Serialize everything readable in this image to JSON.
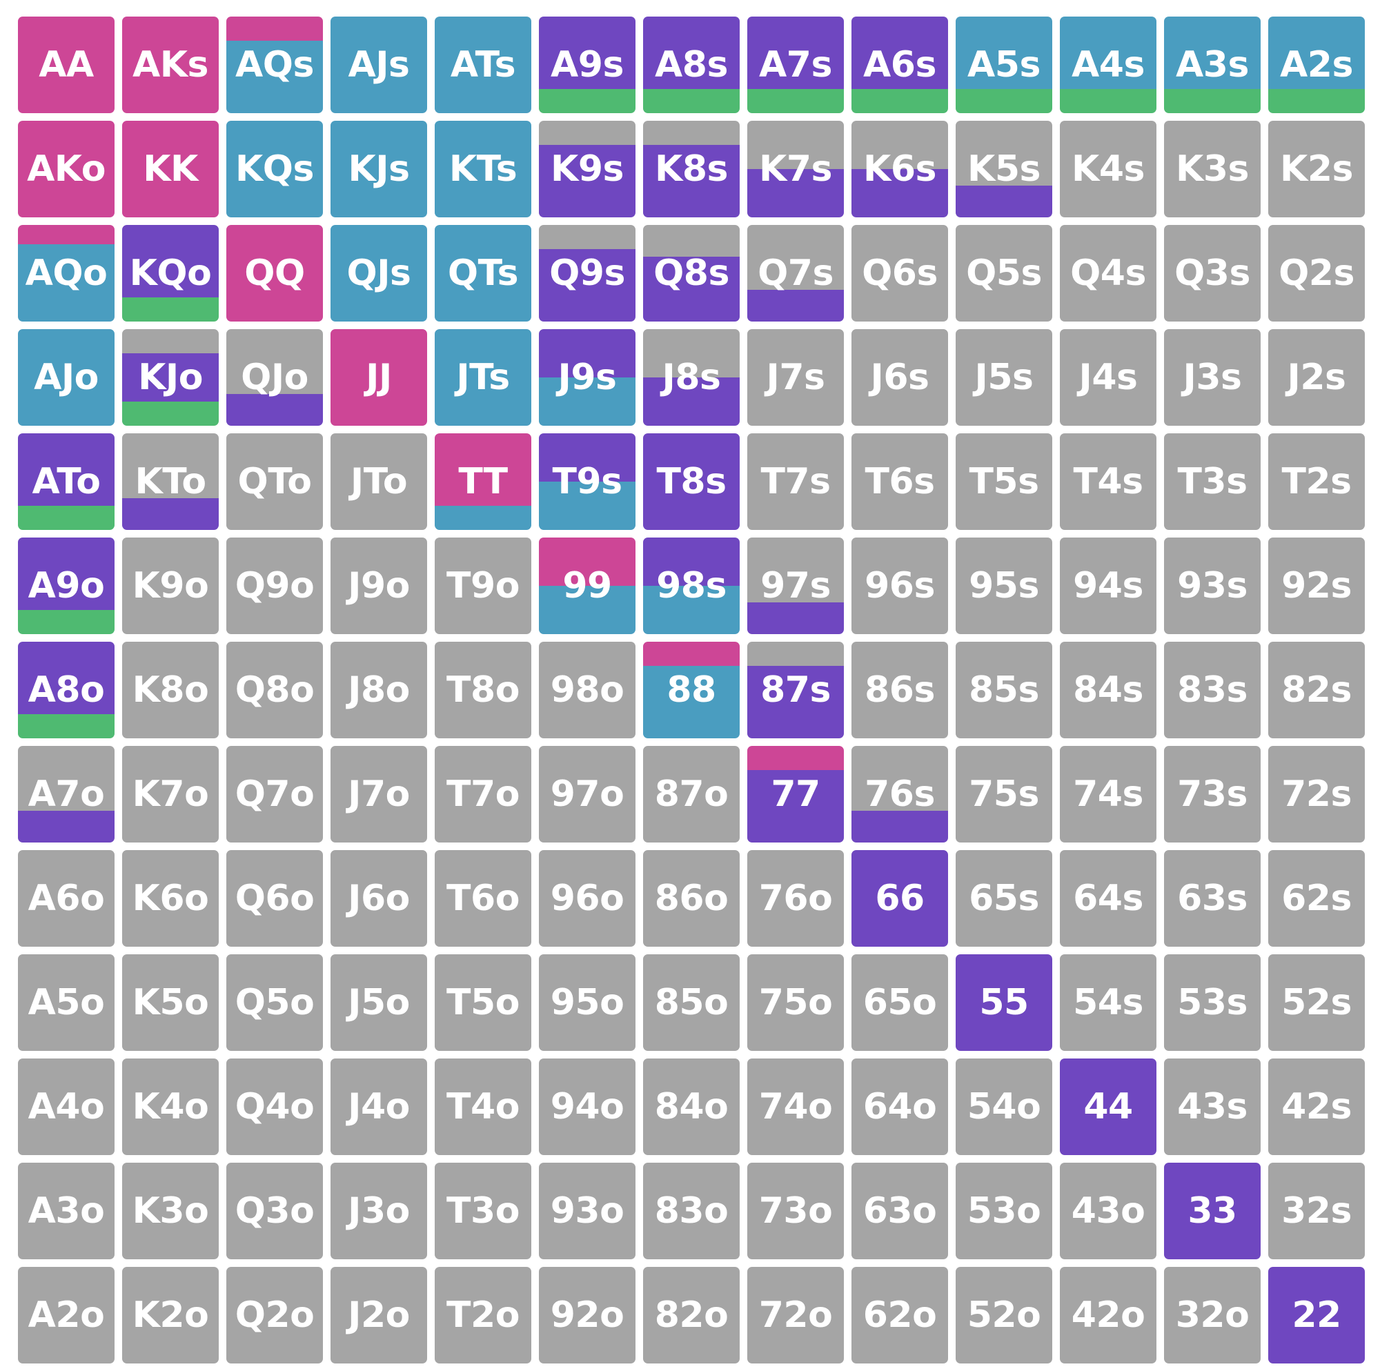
{
  "colors": {
    "raise": "#cd4696",
    "call": "#4a9dc0",
    "threebet": "#6f47c0",
    "allin": "#4fba71",
    "fold": "#a5a5a5"
  },
  "hands": [
    [
      "AA",
      "AKs",
      "AQs",
      "AJs",
      "ATs",
      "A9s",
      "A8s",
      "A7s",
      "A6s",
      "A5s",
      "A4s",
      "A3s",
      "A2s"
    ],
    [
      "AKo",
      "KK",
      "KQs",
      "KJs",
      "KTs",
      "K9s",
      "K8s",
      "K7s",
      "K6s",
      "K5s",
      "K4s",
      "K3s",
      "K2s"
    ],
    [
      "AQo",
      "KQo",
      "QQ",
      "QJs",
      "QTs",
      "Q9s",
      "Q8s",
      "Q7s",
      "Q6s",
      "Q5s",
      "Q4s",
      "Q3s",
      "Q2s"
    ],
    [
      "AJo",
      "KJo",
      "QJo",
      "JJ",
      "JTs",
      "J9s",
      "J8s",
      "J7s",
      "J6s",
      "J5s",
      "J4s",
      "J3s",
      "J2s"
    ],
    [
      "ATo",
      "KTo",
      "QTo",
      "JTo",
      "TT",
      "T9s",
      "T8s",
      "T7s",
      "T6s",
      "T5s",
      "T4s",
      "T3s",
      "T2s"
    ],
    [
      "A9o",
      "K9o",
      "Q9o",
      "J9o",
      "T9o",
      "99",
      "98s",
      "97s",
      "96s",
      "95s",
      "94s",
      "93s",
      "92s"
    ],
    [
      "A8o",
      "K8o",
      "Q8o",
      "J8o",
      "T8o",
      "98o",
      "88",
      "87s",
      "86s",
      "85s",
      "84s",
      "83s",
      "82s"
    ],
    [
      "A7o",
      "K7o",
      "Q7o",
      "J7o",
      "T7o",
      "97o",
      "87o",
      "77",
      "76s",
      "75s",
      "74s",
      "73s",
      "72s"
    ],
    [
      "A6o",
      "K6o",
      "Q6o",
      "J6o",
      "T6o",
      "96o",
      "86o",
      "76o",
      "66",
      "65s",
      "64s",
      "63s",
      "62s"
    ],
    [
      "A5o",
      "K5o",
      "Q5o",
      "J5o",
      "T5o",
      "95o",
      "85o",
      "75o",
      "65o",
      "55",
      "54s",
      "53s",
      "52s"
    ],
    [
      "A4o",
      "K4o",
      "Q4o",
      "J4o",
      "T4o",
      "94o",
      "84o",
      "74o",
      "64o",
      "54o",
      "44",
      "43s",
      "42s"
    ],
    [
      "A3o",
      "K3o",
      "Q3o",
      "J3o",
      "T3o",
      "93o",
      "83o",
      "73o",
      "63o",
      "53o",
      "43o",
      "33",
      "32s"
    ],
    [
      "A2o",
      "K2o",
      "Q2o",
      "J2o",
      "T2o",
      "92o",
      "82o",
      "72o",
      "62o",
      "52o",
      "42o",
      "32o",
      "22"
    ]
  ],
  "mix": {
    "AA": [
      [
        "raise",
        1
      ]
    ],
    "AKs": [
      [
        "raise",
        1
      ]
    ],
    "AQs": [
      [
        "raise",
        0.25
      ],
      [
        "call",
        0.75
      ]
    ],
    "AJs": [
      [
        "call",
        1
      ]
    ],
    "ATs": [
      [
        "call",
        1
      ]
    ],
    "A9s": [
      [
        "threebet",
        0.75
      ],
      [
        "allin",
        0.25
      ]
    ],
    "A8s": [
      [
        "threebet",
        0.75
      ],
      [
        "allin",
        0.25
      ]
    ],
    "A7s": [
      [
        "threebet",
        0.75
      ],
      [
        "allin",
        0.25
      ]
    ],
    "A6s": [
      [
        "threebet",
        0.75
      ],
      [
        "allin",
        0.25
      ]
    ],
    "A5s": [
      [
        "call",
        0.75
      ],
      [
        "allin",
        0.25
      ]
    ],
    "A4s": [
      [
        "call",
        0.75
      ],
      [
        "allin",
        0.25
      ]
    ],
    "A3s": [
      [
        "call",
        0.75
      ],
      [
        "allin",
        0.25
      ]
    ],
    "A2s": [
      [
        "call",
        0.75
      ],
      [
        "allin",
        0.25
      ]
    ],
    "AKo": [
      [
        "raise",
        1
      ]
    ],
    "KK": [
      [
        "raise",
        1
      ]
    ],
    "KQs": [
      [
        "call",
        1
      ]
    ],
    "KJs": [
      [
        "call",
        1
      ]
    ],
    "KTs": [
      [
        "call",
        1
      ]
    ],
    "K9s": [
      [
        "fold",
        0.25
      ],
      [
        "threebet",
        0.75
      ]
    ],
    "K8s": [
      [
        "fold",
        0.25
      ],
      [
        "threebet",
        0.75
      ]
    ],
    "K7s": [
      [
        "fold",
        0.5
      ],
      [
        "threebet",
        0.5
      ]
    ],
    "K6s": [
      [
        "fold",
        0.5
      ],
      [
        "threebet",
        0.5
      ]
    ],
    "K5s": [
      [
        "fold",
        0.67
      ],
      [
        "threebet",
        0.33
      ]
    ],
    "AQo": [
      [
        "raise",
        0.2
      ],
      [
        "call",
        0.8
      ]
    ],
    "KQo": [
      [
        "threebet",
        0.75
      ],
      [
        "allin",
        0.25
      ]
    ],
    "QQ": [
      [
        "raise",
        1
      ]
    ],
    "QJs": [
      [
        "call",
        1
      ]
    ],
    "QTs": [
      [
        "call",
        1
      ]
    ],
    "Q9s": [
      [
        "fold",
        0.25
      ],
      [
        "threebet",
        0.75
      ]
    ],
    "Q8s": [
      [
        "fold",
        0.33
      ],
      [
        "threebet",
        0.67
      ]
    ],
    "Q7s": [
      [
        "fold",
        0.67
      ],
      [
        "threebet",
        0.33
      ]
    ],
    "AJo": [
      [
        "call",
        1
      ]
    ],
    "KJo": [
      [
        "fold",
        0.25
      ],
      [
        "threebet",
        0.5
      ],
      [
        "allin",
        0.25
      ]
    ],
    "QJo": [
      [
        "fold",
        0.67
      ],
      [
        "threebet",
        0.33
      ]
    ],
    "JJ": [
      [
        "raise",
        1
      ]
    ],
    "JTs": [
      [
        "call",
        1
      ]
    ],
    "J9s": [
      [
        "threebet",
        0.5
      ],
      [
        "call",
        0.5
      ]
    ],
    "J8s": [
      [
        "fold",
        0.5
      ],
      [
        "threebet",
        0.5
      ]
    ],
    "ATo": [
      [
        "threebet",
        0.75
      ],
      [
        "allin",
        0.25
      ]
    ],
    "KTo": [
      [
        "fold",
        0.67
      ],
      [
        "threebet",
        0.33
      ]
    ],
    "TT": [
      [
        "raise",
        0.75
      ],
      [
        "call",
        0.25
      ]
    ],
    "T9s": [
      [
        "threebet",
        0.5
      ],
      [
        "call",
        0.5
      ]
    ],
    "T8s": [
      [
        "threebet",
        1
      ]
    ],
    "A9o": [
      [
        "threebet",
        0.75
      ],
      [
        "allin",
        0.25
      ]
    ],
    "99": [
      [
        "raise",
        0.5
      ],
      [
        "call",
        0.5
      ]
    ],
    "98s": [
      [
        "threebet",
        0.5
      ],
      [
        "call",
        0.5
      ]
    ],
    "97s": [
      [
        "fold",
        0.67
      ],
      [
        "threebet",
        0.33
      ]
    ],
    "A8o": [
      [
        "threebet",
        0.75
      ],
      [
        "allin",
        0.25
      ]
    ],
    "88": [
      [
        "raise",
        0.25
      ],
      [
        "call",
        0.75
      ]
    ],
    "87s": [
      [
        "fold",
        0.25
      ],
      [
        "threebet",
        0.75
      ]
    ],
    "A7o": [
      [
        "fold",
        0.67
      ],
      [
        "threebet",
        0.33
      ]
    ],
    "77": [
      [
        "raise",
        0.25
      ],
      [
        "threebet",
        0.75
      ]
    ],
    "76s": [
      [
        "fold",
        0.67
      ],
      [
        "threebet",
        0.33
      ]
    ],
    "66": [
      [
        "threebet",
        1
      ]
    ],
    "55": [
      [
        "threebet",
        1
      ]
    ],
    "44": [
      [
        "threebet",
        1
      ]
    ],
    "33": [
      [
        "threebet",
        1
      ]
    ],
    "22": [
      [
        "threebet",
        1
      ]
    ]
  }
}
